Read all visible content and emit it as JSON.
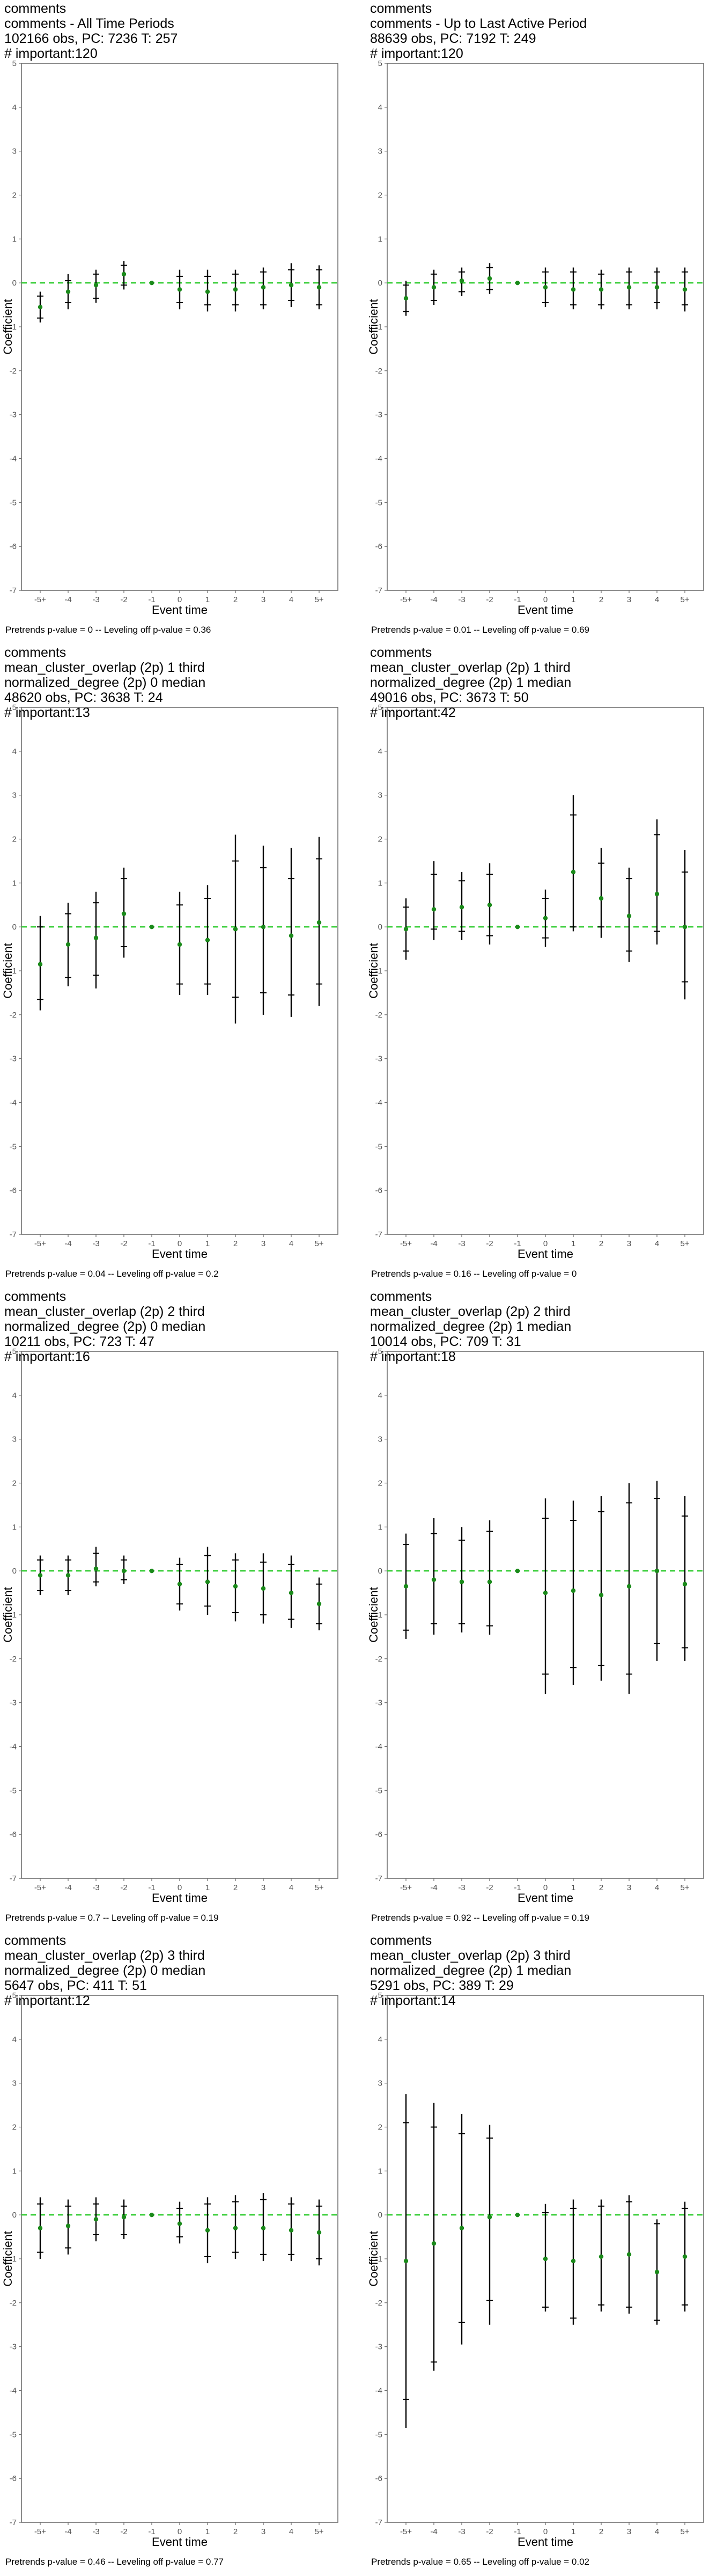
{
  "colors": {
    "point": "#1a8a1a",
    "zero_line": "#33cc33",
    "bar": "#000000",
    "axis": "#666666"
  },
  "footer_prefix": "Pretrends p-value = ",
  "footer_mid": " -- Leveling off p-value = ",
  "chart_data": [
    {
      "type": "scatter",
      "title": [
        "comments",
        "comments - All Time Periods",
        "102166 obs, PC: 7236 T: 257",
        "# important:120"
      ],
      "xlabel": "Event time",
      "ylabel": "Coefficient",
      "categories": [
        "-5+",
        "-4",
        "-3",
        "-2",
        "-1",
        "0",
        "1",
        "2",
        "3",
        "4",
        "5+"
      ],
      "ylim": [
        -7,
        5
      ],
      "yticks": [
        5,
        4,
        3,
        2,
        1,
        0,
        -1,
        -2,
        -3,
        -4,
        -5,
        -6,
        -7
      ],
      "estimate": [
        -0.55,
        -0.2,
        -0.05,
        0.2,
        0,
        -0.15,
        -0.2,
        -0.15,
        -0.1,
        -0.05,
        -0.1
      ],
      "ci_outer": [
        [
          -0.9,
          -0.2
        ],
        [
          -0.6,
          0.2
        ],
        [
          -0.45,
          0.3
        ],
        [
          -0.15,
          0.5
        ],
        [
          0,
          0
        ],
        [
          -0.6,
          0.3
        ],
        [
          -0.65,
          0.3
        ],
        [
          -0.65,
          0.3
        ],
        [
          -0.6,
          0.35
        ],
        [
          -0.55,
          0.45
        ],
        [
          -0.6,
          0.4
        ]
      ],
      "ci_inner": [
        [
          -0.8,
          -0.3
        ],
        [
          -0.45,
          0.05
        ],
        [
          -0.35,
          0.2
        ],
        [
          -0.05,
          0.4
        ],
        [
          0,
          0
        ],
        [
          -0.45,
          0.15
        ],
        [
          -0.5,
          0.15
        ],
        [
          -0.5,
          0.2
        ],
        [
          -0.5,
          0.25
        ],
        [
          -0.4,
          0.3
        ],
        [
          -0.5,
          0.3
        ]
      ],
      "pretrends_p": "0",
      "leveling_p": "0.36"
    },
    {
      "type": "scatter",
      "title": [
        "comments",
        "comments - Up to Last Active Period",
        "88639 obs, PC: 7192 T: 249",
        "# important:120"
      ],
      "xlabel": "Event time",
      "ylabel": "Coefficient",
      "categories": [
        "-5+",
        "-4",
        "-3",
        "-2",
        "-1",
        "0",
        "1",
        "2",
        "3",
        "4",
        "5+"
      ],
      "ylim": [
        -7,
        5
      ],
      "yticks": [
        5,
        4,
        3,
        2,
        1,
        0,
        -1,
        -2,
        -3,
        -4,
        -5,
        -6,
        -7
      ],
      "estimate": [
        -0.35,
        -0.1,
        0.05,
        0.1,
        0,
        -0.1,
        -0.15,
        -0.15,
        -0.1,
        -0.1,
        -0.15
      ],
      "ci_outer": [
        [
          -0.75,
          0.05
        ],
        [
          -0.5,
          0.3
        ],
        [
          -0.3,
          0.35
        ],
        [
          -0.25,
          0.45
        ],
        [
          0,
          0
        ],
        [
          -0.55,
          0.35
        ],
        [
          -0.6,
          0.35
        ],
        [
          -0.6,
          0.3
        ],
        [
          -0.6,
          0.35
        ],
        [
          -0.6,
          0.35
        ],
        [
          -0.65,
          0.35
        ]
      ],
      "ci_inner": [
        [
          -0.65,
          -0.05
        ],
        [
          -0.4,
          0.2
        ],
        [
          -0.2,
          0.25
        ],
        [
          -0.15,
          0.35
        ],
        [
          0,
          0
        ],
        [
          -0.45,
          0.25
        ],
        [
          -0.5,
          0.25
        ],
        [
          -0.5,
          0.2
        ],
        [
          -0.5,
          0.25
        ],
        [
          -0.45,
          0.25
        ],
        [
          -0.5,
          0.25
        ]
      ],
      "pretrends_p": "0.01",
      "leveling_p": "0.69"
    },
    {
      "type": "scatter",
      "title": [
        "comments",
        "mean_cluster_overlap (2p) 1 third",
        "normalized_degree (2p) 0 median",
        "48620 obs, PC: 3638 T: 24",
        "# important:13"
      ],
      "xlabel": "Event time",
      "ylabel": "Coefficient",
      "categories": [
        "-5+",
        "-4",
        "-3",
        "-2",
        "-1",
        "0",
        "1",
        "2",
        "3",
        "4",
        "5+"
      ],
      "ylim": [
        -7,
        5
      ],
      "yticks": [
        5,
        4,
        3,
        2,
        1,
        0,
        -1,
        -2,
        -3,
        -4,
        -5,
        -6,
        -7
      ],
      "estimate": [
        -0.85,
        -0.4,
        -0.25,
        0.3,
        0,
        -0.4,
        -0.3,
        -0.05,
        0,
        -0.2,
        0.1
      ],
      "ci_outer": [
        [
          -1.9,
          0.25
        ],
        [
          -1.35,
          0.55
        ],
        [
          -1.4,
          0.8
        ],
        [
          -0.7,
          1.35
        ],
        [
          0,
          0
        ],
        [
          -1.55,
          0.8
        ],
        [
          -1.55,
          0.95
        ],
        [
          -2.2,
          2.1
        ],
        [
          -2,
          1.85
        ],
        [
          -2.05,
          1.8
        ],
        [
          -1.8,
          2.05
        ]
      ],
      "ci_inner": [
        [
          -1.65,
          0.0
        ],
        [
          -1.15,
          0.3
        ],
        [
          -1.1,
          0.55
        ],
        [
          -0.45,
          1.1
        ],
        [
          0,
          0
        ],
        [
          -1.3,
          0.5
        ],
        [
          -1.3,
          0.65
        ],
        [
          -1.6,
          1.5
        ],
        [
          -1.5,
          1.35
        ],
        [
          -1.55,
          1.1
        ],
        [
          -1.3,
          1.55
        ]
      ],
      "pretrends_p": "0.04",
      "leveling_p": "0.2"
    },
    {
      "type": "scatter",
      "title": [
        "comments",
        "mean_cluster_overlap (2p) 1 third",
        "normalized_degree (2p) 1 median",
        "49016 obs, PC: 3673 T: 50",
        "# important:42"
      ],
      "xlabel": "Event time",
      "ylabel": "Coefficient",
      "categories": [
        "-5+",
        "-4",
        "-3",
        "-2",
        "-1",
        "0",
        "1",
        "2",
        "3",
        "4",
        "5+"
      ],
      "ylim": [
        -7,
        5
      ],
      "yticks": [
        5,
        4,
        3,
        2,
        1,
        0,
        -1,
        -2,
        -3,
        -4,
        -5,
        -6,
        -7
      ],
      "estimate": [
        -0.05,
        0.4,
        0.45,
        0.5,
        0,
        0.2,
        1.25,
        0.65,
        0.25,
        0.75,
        0.0
      ],
      "ci_outer": [
        [
          -0.75,
          0.65
        ],
        [
          -0.3,
          1.5
        ],
        [
          -0.3,
          1.25
        ],
        [
          -0.4,
          1.45
        ],
        [
          0,
          0
        ],
        [
          -0.45,
          0.85
        ],
        [
          -0.1,
          3.0
        ],
        [
          -0.25,
          1.8
        ],
        [
          -0.8,
          1.35
        ],
        [
          -0.4,
          2.45
        ],
        [
          -1.65,
          1.75
        ]
      ],
      "ci_inner": [
        [
          -0.55,
          0.45
        ],
        [
          -0.05,
          1.2
        ],
        [
          -0.1,
          1.05
        ],
        [
          -0.2,
          1.2
        ],
        [
          0,
          0
        ],
        [
          -0.25,
          0.65
        ],
        [
          0.0,
          2.55
        ],
        [
          0.0,
          1.45
        ],
        [
          -0.55,
          1.1
        ],
        [
          -0.1,
          2.1
        ],
        [
          -1.25,
          1.25
        ]
      ],
      "pretrends_p": "0.16",
      "leveling_p": "0"
    },
    {
      "type": "scatter",
      "title": [
        "comments",
        "mean_cluster_overlap (2p) 2 third",
        "normalized_degree (2p) 0 median",
        "10211 obs, PC: 723 T: 47",
        "# important:16"
      ],
      "xlabel": "Event time",
      "ylabel": "Coefficient",
      "categories": [
        "-5+",
        "-4",
        "-3",
        "-2",
        "-1",
        "0",
        "1",
        "2",
        "3",
        "4",
        "5+"
      ],
      "ylim": [
        -7,
        5
      ],
      "yticks": [
        5,
        4,
        3,
        2,
        1,
        0,
        -1,
        -2,
        -3,
        -4,
        -5,
        -6,
        -7
      ],
      "estimate": [
        -0.1,
        -0.1,
        0.05,
        0.0,
        0,
        -0.3,
        -0.25,
        -0.35,
        -0.4,
        -0.5,
        -0.75
      ],
      "ci_outer": [
        [
          -0.55,
          0.35
        ],
        [
          -0.55,
          0.35
        ],
        [
          -0.35,
          0.55
        ],
        [
          -0.3,
          0.35
        ],
        [
          0,
          0
        ],
        [
          -0.9,
          0.3
        ],
        [
          -1.0,
          0.55
        ],
        [
          -1.15,
          0.4
        ],
        [
          -1.2,
          0.4
        ],
        [
          -1.3,
          0.35
        ],
        [
          -1.35,
          -0.15
        ]
      ],
      "ci_inner": [
        [
          -0.45,
          0.25
        ],
        [
          -0.45,
          0.25
        ],
        [
          -0.25,
          0.4
        ],
        [
          -0.2,
          0.25
        ],
        [
          0,
          0
        ],
        [
          -0.75,
          0.15
        ],
        [
          -0.8,
          0.35
        ],
        [
          -0.95,
          0.25
        ],
        [
          -1.0,
          0.2
        ],
        [
          -1.1,
          0.15
        ],
        [
          -1.2,
          -0.3
        ]
      ],
      "pretrends_p": "0.7",
      "leveling_p": "0.19"
    },
    {
      "type": "scatter",
      "title": [
        "comments",
        "mean_cluster_overlap (2p) 2 third",
        "normalized_degree (2p) 1 median",
        "10014 obs, PC: 709 T: 31",
        "# important:18"
      ],
      "xlabel": "Event time",
      "ylabel": "Coefficient",
      "categories": [
        "-5+",
        "-4",
        "-3",
        "-2",
        "-1",
        "0",
        "1",
        "2",
        "3",
        "4",
        "5+"
      ],
      "ylim": [
        -7,
        5
      ],
      "yticks": [
        5,
        4,
        3,
        2,
        1,
        0,
        -1,
        -2,
        -3,
        -4,
        -5,
        -6,
        -7
      ],
      "estimate": [
        -0.35,
        -0.2,
        -0.25,
        -0.25,
        0,
        -0.5,
        -0.45,
        -0.55,
        -0.35,
        0.0,
        -0.3
      ],
      "ci_outer": [
        [
          -1.55,
          0.85
        ],
        [
          -1.45,
          1.2
        ],
        [
          -1.4,
          1.0
        ],
        [
          -1.45,
          1.15
        ],
        [
          0,
          0
        ],
        [
          -2.8,
          1.65
        ],
        [
          -2.6,
          1.6
        ],
        [
          -2.5,
          1.7
        ],
        [
          -2.8,
          2.0
        ],
        [
          -2.05,
          2.05
        ],
        [
          -2.05,
          1.7
        ]
      ],
      "ci_inner": [
        [
          -1.35,
          0.6
        ],
        [
          -1.2,
          0.85
        ],
        [
          -1.2,
          0.7
        ],
        [
          -1.25,
          0.9
        ],
        [
          0,
          0
        ],
        [
          -2.35,
          1.2
        ],
        [
          -2.2,
          1.15
        ],
        [
          -2.15,
          1.35
        ],
        [
          -2.35,
          1.55
        ],
        [
          -1.65,
          1.65
        ],
        [
          -1.75,
          1.25
        ]
      ],
      "pretrends_p": "0.92",
      "leveling_p": "0.19"
    },
    {
      "type": "scatter",
      "title": [
        "comments",
        "mean_cluster_overlap (2p) 3 third",
        "normalized_degree (2p) 0 median",
        "5647 obs, PC: 411 T: 51",
        "# important:12"
      ],
      "xlabel": "Event time",
      "ylabel": "Coefficient",
      "categories": [
        "-5+",
        "-4",
        "-3",
        "-2",
        "-1",
        "0",
        "1",
        "2",
        "3",
        "4",
        "5+"
      ],
      "ylim": [
        -7,
        5
      ],
      "yticks": [
        5,
        4,
        3,
        2,
        1,
        0,
        -1,
        -2,
        -3,
        -4,
        -5,
        -6,
        -7
      ],
      "estimate": [
        -0.3,
        -0.25,
        -0.1,
        -0.05,
        0,
        -0.2,
        -0.35,
        -0.3,
        -0.3,
        -0.35,
        -0.4
      ],
      "ci_outer": [
        [
          -1.0,
          0.4
        ],
        [
          -0.9,
          0.35
        ],
        [
          -0.6,
          0.4
        ],
        [
          -0.55,
          0.35
        ],
        [
          0,
          0
        ],
        [
          -0.65,
          0.3
        ],
        [
          -1.1,
          0.4
        ],
        [
          -1.0,
          0.45
        ],
        [
          -1.05,
          0.5
        ],
        [
          -1.05,
          0.4
        ],
        [
          -1.15,
          0.35
        ]
      ],
      "ci_inner": [
        [
          -0.85,
          0.25
        ],
        [
          -0.75,
          0.2
        ],
        [
          -0.45,
          0.25
        ],
        [
          -0.45,
          0.2
        ],
        [
          0,
          0
        ],
        [
          -0.5,
          0.15
        ],
        [
          -0.95,
          0.25
        ],
        [
          -0.85,
          0.3
        ],
        [
          -0.9,
          0.35
        ],
        [
          -0.9,
          0.25
        ],
        [
          -1.0,
          0.2
        ]
      ],
      "pretrends_p": "0.46",
      "leveling_p": "0.77"
    },
    {
      "type": "scatter",
      "title": [
        "comments",
        "mean_cluster_overlap (2p) 3 third",
        "normalized_degree (2p) 1 median",
        "5291 obs, PC: 389 T: 29",
        "# important:14"
      ],
      "xlabel": "Event time",
      "ylabel": "Coefficient",
      "categories": [
        "-5+",
        "-4",
        "-3",
        "-2",
        "-1",
        "0",
        "1",
        "2",
        "3",
        "4",
        "5+"
      ],
      "ylim": [
        -7,
        5
      ],
      "yticks": [
        5,
        4,
        3,
        2,
        1,
        0,
        -1,
        -2,
        -3,
        -4,
        -5,
        -6,
        -7
      ],
      "estimate": [
        -1.05,
        -0.65,
        -0.3,
        -0.05,
        0,
        -1.0,
        -1.05,
        -0.95,
        -0.9,
        -1.3,
        -0.95
      ],
      "ci_outer": [
        [
          -4.85,
          2.75
        ],
        [
          -3.55,
          2.55
        ],
        [
          -2.95,
          2.3
        ],
        [
          -2.5,
          2.05
        ],
        [
          0,
          0
        ],
        [
          -2.2,
          0.25
        ],
        [
          -2.5,
          0.35
        ],
        [
          -2.2,
          0.35
        ],
        [
          -2.25,
          0.45
        ],
        [
          -2.5,
          -0.1
        ],
        [
          -2.2,
          0.3
        ]
      ],
      "ci_inner": [
        [
          -4.2,
          2.1
        ],
        [
          -3.35,
          2.0
        ],
        [
          -2.45,
          1.85
        ],
        [
          -1.95,
          1.75
        ],
        [
          0,
          0
        ],
        [
          -2.1,
          0.05
        ],
        [
          -2.35,
          0.15
        ],
        [
          -2.05,
          0.2
        ],
        [
          -2.1,
          0.3
        ],
        [
          -2.4,
          -0.2
        ],
        [
          -2.05,
          0.15
        ]
      ],
      "pretrends_p": "0.65",
      "leveling_p": "0.02"
    }
  ]
}
